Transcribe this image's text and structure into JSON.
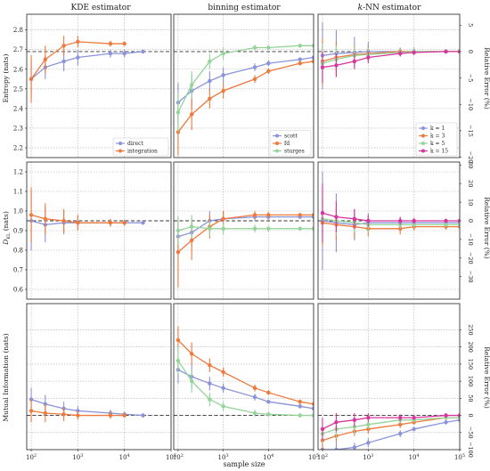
{
  "figure": {
    "column_titles": [
      "KDE estimator",
      "binning estimator",
      "k-NN estimator"
    ],
    "column_title_k": "k",
    "column_title_knn_rest": "-NN estimator",
    "xlabel": "sample size",
    "row_ylabels": [
      "Entropy (nats)",
      "D",
      "Mutual Information (nats)"
    ],
    "dkl_sub": "KL",
    "dkl_suffix": " (nats)",
    "right_ylabel": "Relative Error (%)",
    "x_ticks": [
      "10",
      "10",
      "10",
      "10",
      "10"
    ],
    "x_tick_exponents": [
      "2",
      "3",
      "4",
      "5",
      ""
    ]
  },
  "colors": {
    "blue": "#8b93d9",
    "orange": "#ee7a3d",
    "green": "#94d49a",
    "magenta": "#d9359e",
    "grid": "#b0b0b0",
    "reference": "#333333"
  },
  "chart_data": [
    {
      "type": "line",
      "row": "entropy",
      "column": "KDE estimator",
      "xscale": "log",
      "xlim": [
        80,
        100000
      ],
      "ylim": [
        2.15,
        2.88
      ],
      "y_ticks": [
        "2.2",
        "2.3",
        "2.4",
        "2.5",
        "2.6",
        "2.7",
        "2.8"
      ],
      "reference_value": 2.69,
      "legend": "bottom-right",
      "series": [
        {
          "name": "direct",
          "color": "blue",
          "x": [
            100,
            200,
            500,
            1000,
            5000,
            10000,
            25000
          ],
          "y": [
            2.55,
            2.61,
            2.64,
            2.66,
            2.68,
            2.68,
            2.69
          ],
          "err": [
            0.09,
            0.06,
            0.05,
            0.04,
            0.02,
            0.02,
            0.01
          ]
        },
        {
          "name": "integration",
          "color": "orange",
          "x": [
            100,
            200,
            500,
            1000,
            5000,
            10000
          ],
          "y": [
            2.55,
            2.65,
            2.72,
            2.74,
            2.73,
            2.73
          ],
          "err": [
            0.12,
            0.07,
            0.05,
            0.03,
            0.015,
            0.01
          ]
        }
      ]
    },
    {
      "type": "line",
      "row": "entropy",
      "column": "binning estimator",
      "xscale": "log",
      "xlim": [
        80,
        100000
      ],
      "ylim": [
        2.15,
        2.88
      ],
      "y_ticks": [],
      "reference_value": 2.69,
      "legend": "bottom-right",
      "series": [
        {
          "name": "scott",
          "color": "blue",
          "x": [
            100,
            200,
            500,
            1000,
            5000,
            10000,
            50000,
            100000
          ],
          "y": [
            2.43,
            2.49,
            2.54,
            2.57,
            2.61,
            2.63,
            2.65,
            2.66
          ],
          "err": [
            0.1,
            0.08,
            0.05,
            0.04,
            0.02,
            0.015,
            0.01,
            0.01
          ]
        },
        {
          "name": "fd",
          "color": "orange",
          "x": [
            100,
            200,
            500,
            1000,
            5000,
            10000,
            50000,
            100000
          ],
          "y": [
            2.28,
            2.37,
            2.45,
            2.49,
            2.55,
            2.59,
            2.63,
            2.64
          ],
          "err": [
            0.12,
            0.08,
            0.05,
            0.04,
            0.02,
            0.015,
            0.01,
            0.01
          ]
        },
        {
          "name": "sturges",
          "color": "green",
          "x": [
            100,
            200,
            500,
            1000,
            5000,
            10000,
            50000,
            100000
          ],
          "y": [
            2.38,
            2.52,
            2.64,
            2.68,
            2.71,
            2.71,
            2.72,
            2.72
          ],
          "err": [
            0.1,
            0.07,
            0.04,
            0.03,
            0.015,
            0.01,
            0.01,
            0.01
          ]
        }
      ]
    },
    {
      "type": "line",
      "row": "entropy",
      "column": "k-NN estimator",
      "xscale": "log",
      "xlim": [
        80,
        100000
      ],
      "ylim": [
        2.15,
        2.88
      ],
      "right_y_ticks": [
        "5",
        "0",
        "−5",
        "−10",
        "−15",
        "−20"
      ],
      "right_tick_values": [
        5,
        0,
        -5,
        -10,
        -15,
        -20
      ],
      "reference_value": 2.69,
      "legend": "bottom-right",
      "series": [
        {
          "name": "k = 1",
          "color": "blue",
          "x": [
            100,
            200,
            500,
            1000,
            5000,
            10000,
            50000,
            100000
          ],
          "y": [
            2.67,
            2.68,
            2.685,
            2.69,
            2.69,
            2.69,
            2.69,
            2.69
          ],
          "err": [
            0.17,
            0.12,
            0.08,
            0.05,
            0.02,
            0.02,
            0.01,
            0.01
          ]
        },
        {
          "name": "k = 3",
          "color": "orange",
          "x": [
            100,
            200,
            500,
            1000,
            5000,
            10000,
            50000,
            100000
          ],
          "y": [
            2.64,
            2.66,
            2.675,
            2.68,
            2.69,
            2.69,
            2.69,
            2.69
          ],
          "err": [
            0.12,
            0.08,
            0.05,
            0.04,
            0.02,
            0.015,
            0.01,
            0.01
          ]
        },
        {
          "name": "k = 5",
          "color": "green",
          "x": [
            100,
            200,
            500,
            1000,
            5000,
            10000,
            50000,
            100000
          ],
          "y": [
            2.63,
            2.65,
            2.67,
            2.675,
            2.685,
            2.69,
            2.69,
            2.69
          ],
          "err": [
            0.1,
            0.07,
            0.05,
            0.035,
            0.02,
            0.015,
            0.01,
            0.01
          ]
        },
        {
          "name": "k = 15",
          "color": "magenta",
          "x": [
            100,
            200,
            500,
            1000,
            5000,
            10000,
            50000,
            100000
          ],
          "y": [
            2.61,
            2.62,
            2.64,
            2.66,
            2.68,
            2.685,
            2.69,
            2.69
          ],
          "err": [
            0.08,
            0.06,
            0.04,
            0.03,
            0.015,
            0.01,
            0.01,
            0.01
          ]
        }
      ]
    },
    {
      "type": "line",
      "row": "dkl",
      "column": "KDE estimator",
      "xscale": "log",
      "xlim": [
        80,
        100000
      ],
      "ylim": [
        0.55,
        1.25
      ],
      "y_ticks": [
        "0.6",
        "0.7",
        "0.8",
        "0.9",
        "1.0",
        "1.1",
        "1.2"
      ],
      "reference_value": 0.95,
      "series": [
        {
          "color": "blue",
          "x": [
            100,
            200,
            500,
            1000,
            5000,
            10000,
            25000
          ],
          "y": [
            0.95,
            0.93,
            0.94,
            0.94,
            0.94,
            0.94,
            0.94
          ],
          "err": [
            0.15,
            0.09,
            0.06,
            0.04,
            0.02,
            0.015,
            0.01
          ]
        },
        {
          "color": "orange",
          "x": [
            100,
            200,
            500,
            1000,
            5000,
            10000
          ],
          "y": [
            0.98,
            0.96,
            0.95,
            0.94,
            0.94,
            0.94
          ],
          "err": [
            0.14,
            0.08,
            0.06,
            0.04,
            0.02,
            0.015
          ]
        }
      ]
    },
    {
      "type": "line",
      "row": "dkl",
      "column": "binning estimator",
      "xscale": "log",
      "xlim": [
        80,
        100000
      ],
      "ylim": [
        0.55,
        1.25
      ],
      "y_ticks": [],
      "reference_value": 0.95,
      "series": [
        {
          "color": "blue",
          "x": [
            100,
            200,
            500,
            1000,
            5000,
            10000,
            50000,
            100000
          ],
          "y": [
            0.87,
            0.89,
            0.95,
            0.96,
            0.97,
            0.97,
            0.97,
            0.97
          ],
          "err": [
            0.08,
            0.07,
            0.05,
            0.04,
            0.02,
            0.015,
            0.01,
            0.01
          ]
        },
        {
          "color": "orange",
          "x": [
            100,
            200,
            500,
            1000,
            5000,
            10000,
            50000,
            100000
          ],
          "y": [
            0.79,
            0.85,
            0.92,
            0.96,
            0.98,
            0.98,
            0.98,
            0.98
          ],
          "err": [
            0.18,
            0.1,
            0.06,
            0.04,
            0.02,
            0.015,
            0.01,
            0.01
          ]
        },
        {
          "color": "green",
          "x": [
            100,
            200,
            500,
            1000,
            5000,
            10000,
            50000,
            100000
          ],
          "y": [
            0.9,
            0.92,
            0.91,
            0.91,
            0.91,
            0.91,
            0.91,
            0.91
          ],
          "err": [
            0.07,
            0.06,
            0.04,
            0.03,
            0.02,
            0.015,
            0.01,
            0.01
          ]
        }
      ]
    },
    {
      "type": "line",
      "row": "dkl",
      "column": "k-NN estimator",
      "xscale": "log",
      "xlim": [
        80,
        100000
      ],
      "ylim": [
        0.55,
        1.25
      ],
      "right_y_ticks": [
        "30",
        "20",
        "10",
        "0",
        "−10",
        "−20",
        "−30"
      ],
      "right_tick_values": [
        30,
        20,
        10,
        0,
        -10,
        -20,
        -30
      ],
      "reference_value": 0.95,
      "series": [
        {
          "color": "blue",
          "x": [
            100,
            200,
            500,
            1000,
            5000,
            10000,
            50000,
            100000
          ],
          "y": [
            0.95,
            0.94,
            0.93,
            0.94,
            0.94,
            0.94,
            0.94,
            0.94
          ],
          "err": [
            0.25,
            0.15,
            0.08,
            0.05,
            0.03,
            0.02,
            0.01,
            0.01
          ]
        },
        {
          "color": "orange",
          "x": [
            100,
            200,
            500,
            1000,
            5000,
            10000,
            50000,
            100000
          ],
          "y": [
            0.94,
            0.93,
            0.92,
            0.91,
            0.91,
            0.92,
            0.92,
            0.92
          ],
          "err": [
            0.12,
            0.08,
            0.06,
            0.04,
            0.03,
            0.02,
            0.015,
            0.01
          ]
        },
        {
          "color": "green",
          "x": [
            100,
            200,
            500,
            1000,
            5000,
            10000,
            50000,
            100000
          ],
          "y": [
            0.96,
            0.95,
            0.94,
            0.93,
            0.93,
            0.93,
            0.93,
            0.93
          ],
          "err": [
            0.1,
            0.07,
            0.05,
            0.04,
            0.02,
            0.015,
            0.01,
            0.01
          ]
        },
        {
          "color": "magenta",
          "x": [
            100,
            200,
            500,
            1000,
            5000,
            10000,
            50000,
            100000
          ],
          "y": [
            0.99,
            0.97,
            0.96,
            0.95,
            0.95,
            0.95,
            0.95,
            0.95
          ],
          "err": [
            0.15,
            0.08,
            0.05,
            0.03,
            0.02,
            0.015,
            0.01,
            0.01
          ]
        }
      ]
    },
    {
      "type": "line",
      "row": "mutual_information",
      "column": "KDE estimator",
      "xscale": "log",
      "xlim": [
        80,
        100000
      ],
      "ylim": [
        0.0,
        0.64
      ],
      "y_ticks": [],
      "reference_value": 0.15,
      "series": [
        {
          "color": "blue",
          "x": [
            100,
            200,
            500,
            1000,
            5000,
            10000,
            25000
          ],
          "y": [
            0.22,
            0.2,
            0.18,
            0.17,
            0.16,
            0.155,
            0.15
          ],
          "err": [
            0.05,
            0.04,
            0.03,
            0.02,
            0.015,
            0.01,
            0.01
          ]
        },
        {
          "color": "orange",
          "x": [
            100,
            200,
            500,
            1000,
            5000,
            10000
          ],
          "y": [
            0.17,
            0.16,
            0.155,
            0.15,
            0.15,
            0.15
          ],
          "err": [
            0.05,
            0.04,
            0.03,
            0.02,
            0.015,
            0.01
          ]
        }
      ]
    },
    {
      "type": "line",
      "row": "mutual_information",
      "column": "binning estimator",
      "xscale": "log",
      "xlim": [
        80,
        100000
      ],
      "ylim": [
        0.0,
        0.64
      ],
      "y_ticks": [],
      "reference_value": 0.15,
      "series": [
        {
          "color": "blue",
          "x": [
            100,
            200,
            500,
            1000,
            5000,
            10000,
            50000,
            100000
          ],
          "y": [
            0.35,
            0.32,
            0.29,
            0.27,
            0.23,
            0.21,
            0.19,
            0.18
          ],
          "err": [
            0.06,
            0.05,
            0.03,
            0.02,
            0.015,
            0.01,
            0.01,
            0.01
          ]
        },
        {
          "color": "orange",
          "x": [
            100,
            200,
            500,
            1000,
            5000,
            10000,
            50000,
            100000
          ],
          "y": [
            0.48,
            0.42,
            0.37,
            0.34,
            0.27,
            0.25,
            0.21,
            0.2
          ],
          "err": [
            0.06,
            0.05,
            0.03,
            0.02,
            0.015,
            0.01,
            0.01,
            0.01
          ]
        },
        {
          "color": "green",
          "x": [
            100,
            200,
            500,
            1000,
            5000,
            10000,
            50000,
            100000
          ],
          "y": [
            0.39,
            0.3,
            0.22,
            0.19,
            0.16,
            0.155,
            0.15,
            0.15
          ],
          "err": [
            0.06,
            0.05,
            0.03,
            0.02,
            0.015,
            0.01,
            0.01,
            0.01
          ]
        }
      ]
    },
    {
      "type": "line",
      "row": "mutual_information",
      "column": "k-NN estimator",
      "xscale": "log",
      "xlim": [
        80,
        100000
      ],
      "ylim": [
        0.0,
        0.64
      ],
      "right_y_ticks": [
        "250",
        "200",
        "150",
        "100",
        "50",
        "0",
        "−50",
        "−100"
      ],
      "right_tick_values": [
        250,
        200,
        150,
        100,
        50,
        0,
        -50,
        -100
      ],
      "reference_value": 0.15,
      "series": [
        {
          "color": "blue",
          "x": [
            100,
            200,
            500,
            1000,
            5000,
            10000,
            50000,
            100000
          ],
          "y": [
            0.0,
            0.0,
            0.01,
            0.03,
            0.07,
            0.09,
            0.12,
            0.13
          ],
          "err": [
            0.03,
            0.03,
            0.02,
            0.02,
            0.015,
            0.01,
            0.01,
            0.01
          ]
        },
        {
          "color": "orange",
          "x": [
            100,
            200,
            500,
            1000,
            5000,
            10000,
            50000,
            100000
          ],
          "y": [
            0.04,
            0.06,
            0.08,
            0.09,
            0.11,
            0.12,
            0.14,
            0.14
          ],
          "err": [
            0.04,
            0.03,
            0.02,
            0.02,
            0.015,
            0.01,
            0.01,
            0.01
          ]
        },
        {
          "color": "green",
          "x": [
            100,
            200,
            500,
            1000,
            5000,
            10000,
            50000,
            100000
          ],
          "y": [
            0.07,
            0.09,
            0.1,
            0.11,
            0.13,
            0.13,
            0.14,
            0.14
          ],
          "err": [
            0.04,
            0.04,
            0.03,
            0.02,
            0.015,
            0.01,
            0.01,
            0.01
          ]
        },
        {
          "color": "magenta",
          "x": [
            100,
            200,
            500,
            1000,
            5000,
            10000,
            50000,
            100000
          ],
          "y": [
            0.09,
            0.12,
            0.13,
            0.14,
            0.14,
            0.14,
            0.15,
            0.15
          ],
          "err": [
            0.05,
            0.04,
            0.03,
            0.02,
            0.015,
            0.01,
            0.01,
            0.01
          ]
        }
      ]
    }
  ]
}
